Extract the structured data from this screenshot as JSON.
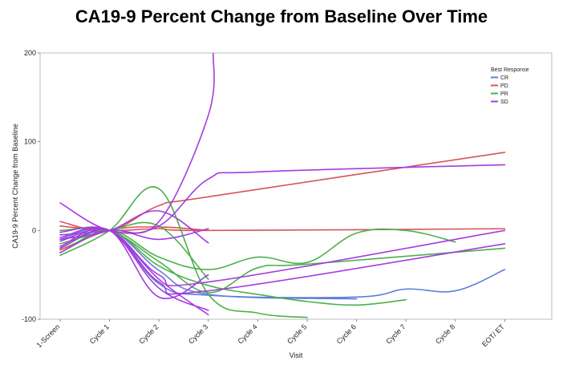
{
  "chart_data": {
    "type": "line",
    "title": "CA19-9 Percent Change from Baseline Over Time",
    "xlabel": "Visit",
    "ylabel": "CA19-9 Percent Change from Baseline",
    "categories": [
      "1-Screen",
      "Cycle 1",
      "Cycle 2",
      "Cycle 3",
      "Cycle 4",
      "Cycle 5",
      "Cycle 6",
      "Cycle 7",
      "Cycle 8",
      "EOT/ ET"
    ],
    "ylim": [
      -100,
      200
    ],
    "yticks": [
      -100,
      0,
      100,
      200
    ],
    "grid": false,
    "legend": {
      "title": "Best Response",
      "position": "top-right",
      "entries": [
        {
          "name": "CR",
          "color": "#5B7FDB"
        },
        {
          "name": "PD",
          "color": "#D9535A"
        },
        {
          "name": "PR",
          "color": "#4CB04C"
        },
        {
          "name": "SD",
          "color": "#A43CE0"
        }
      ]
    },
    "series": [
      {
        "group": "CR",
        "color": "#5B7FDB",
        "points": [
          [
            0,
            -10
          ],
          [
            1,
            0
          ],
          [
            2,
            -60
          ],
          [
            3,
            -73
          ],
          [
            6,
            -75
          ],
          [
            7,
            -66
          ],
          [
            8,
            -68
          ],
          [
            9,
            -44
          ]
        ]
      },
      {
        "group": "CR",
        "color": "#5B7FDB",
        "points": [
          [
            0,
            -20
          ],
          [
            1,
            0
          ],
          [
            2,
            -45
          ],
          [
            3,
            -72
          ],
          [
            6,
            -77
          ]
        ]
      },
      {
        "group": "PD",
        "color": "#D9535A",
        "points": [
          [
            0,
            10
          ],
          [
            1,
            0
          ],
          [
            2,
            28
          ],
          [
            3,
            38
          ],
          [
            9,
            88
          ]
        ]
      },
      {
        "group": "PD",
        "color": "#D9535A",
        "points": [
          [
            0,
            5
          ],
          [
            1,
            0
          ],
          [
            2,
            2
          ],
          [
            3,
            0
          ],
          [
            9,
            2
          ]
        ]
      },
      {
        "group": "PD",
        "color": "#D9535A",
        "points": [
          [
            0,
            -22
          ],
          [
            1,
            0
          ],
          [
            2,
            4
          ],
          [
            3,
            0
          ]
        ]
      },
      {
        "group": "PR",
        "color": "#4CB04C",
        "points": [
          [
            0,
            -28
          ],
          [
            1,
            0
          ],
          [
            2,
            47
          ],
          [
            3,
            -72
          ],
          [
            4,
            -93
          ],
          [
            5,
            -98
          ]
        ]
      },
      {
        "group": "PR",
        "color": "#4CB04C",
        "points": [
          [
            0,
            -25
          ],
          [
            1,
            0
          ],
          [
            2,
            -30
          ],
          [
            3,
            -44
          ],
          [
            4,
            -30
          ],
          [
            5,
            -36
          ],
          [
            6,
            -3
          ],
          [
            7,
            0
          ],
          [
            8,
            -13
          ]
        ]
      },
      {
        "group": "PR",
        "color": "#4CB04C",
        "points": [
          [
            0,
            -20
          ],
          [
            1,
            0
          ],
          [
            2,
            -40
          ],
          [
            3,
            -62
          ],
          [
            4,
            -72
          ],
          [
            5,
            -80
          ],
          [
            6,
            -84
          ],
          [
            7,
            -78
          ]
        ]
      },
      {
        "group": "PR",
        "color": "#4CB04C",
        "points": [
          [
            0,
            0
          ],
          [
            1,
            0
          ],
          [
            2,
            -35
          ],
          [
            3,
            -70
          ],
          [
            4,
            -42
          ],
          [
            5,
            -38
          ],
          [
            9,
            -20
          ]
        ]
      },
      {
        "group": "PR",
        "color": "#4CB04C",
        "points": [
          [
            0,
            -15
          ],
          [
            1,
            0
          ],
          [
            2,
            5
          ],
          [
            3,
            -55
          ]
        ]
      },
      {
        "group": "SD",
        "color": "#A43CE0",
        "points": [
          [
            0,
            31
          ],
          [
            1,
            0
          ],
          [
            2,
            5
          ],
          [
            3,
            58
          ],
          [
            4,
            66
          ],
          [
            9,
            74
          ]
        ]
      },
      {
        "group": "SD",
        "color": "#A43CE0",
        "points": [
          [
            0,
            -5
          ],
          [
            1,
            0
          ],
          [
            2,
            10
          ],
          [
            3,
            130
          ],
          [
            3.1,
            200
          ]
        ]
      },
      {
        "group": "SD",
        "color": "#A43CE0",
        "points": [
          [
            0,
            -10
          ],
          [
            1,
            0
          ],
          [
            2,
            22
          ],
          [
            3,
            -14
          ]
        ]
      },
      {
        "group": "SD",
        "color": "#A43CE0",
        "points": [
          [
            0,
            -25
          ],
          [
            1,
            0
          ],
          [
            2,
            -10
          ],
          [
            3,
            2
          ]
        ]
      },
      {
        "group": "SD",
        "color": "#A43CE0",
        "points": [
          [
            0,
            -12
          ],
          [
            1,
            0
          ],
          [
            2,
            -50
          ],
          [
            3,
            -58
          ],
          [
            9,
            0
          ]
        ]
      },
      {
        "group": "SD",
        "color": "#A43CE0",
        "points": [
          [
            0,
            -20
          ],
          [
            1,
            0
          ],
          [
            2,
            -58
          ],
          [
            3,
            -68
          ],
          [
            9,
            -15
          ]
        ]
      },
      {
        "group": "SD",
        "color": "#A43CE0",
        "points": [
          [
            0,
            -8
          ],
          [
            1,
            0
          ],
          [
            2,
            -65
          ],
          [
            3,
            -90
          ]
        ]
      },
      {
        "group": "SD",
        "color": "#A43CE0",
        "points": [
          [
            0,
            -18
          ],
          [
            1,
            0
          ],
          [
            2,
            -75
          ],
          [
            3,
            -50
          ]
        ]
      },
      {
        "group": "SD",
        "color": "#A43CE0",
        "points": [
          [
            0,
            -2
          ],
          [
            1,
            0
          ],
          [
            2,
            -55
          ],
          [
            3,
            -95
          ]
        ]
      }
    ]
  }
}
